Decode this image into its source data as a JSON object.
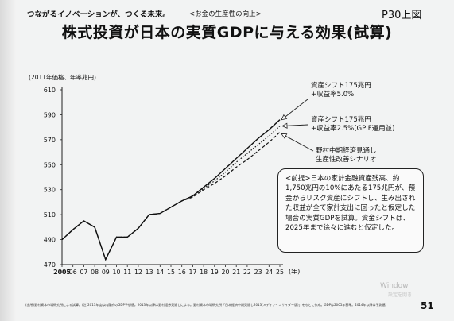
{
  "header": {
    "tagline": "つながるイノベーションが、つくる未来。",
    "subsection": "<お金の生産性の向上>",
    "page_ref": "P30上図"
  },
  "title": "株式投資が日本の実質GDPに与える効果(試算)",
  "units_label": "(2011年価格、年率兆円)",
  "year_unit_label": "(年)",
  "chart_data": {
    "type": "line",
    "x": [
      2005,
      2006,
      2007,
      2008,
      2009,
      2010,
      2011,
      2012,
      2013,
      2014,
      2015,
      2016,
      2017,
      2018,
      2019,
      2020,
      2021,
      2022,
      2023,
      2024,
      2025
    ],
    "x_tick_labels": [
      "2005",
      "06",
      "07",
      "08",
      "09",
      "10",
      "11",
      "12",
      "13",
      "14",
      "15",
      "16",
      "17",
      "18",
      "19",
      "20",
      "21",
      "22",
      "23",
      "24",
      "25"
    ],
    "ylim": [
      470,
      610
    ],
    "y_ticks": [
      470,
      490,
      510,
      530,
      550,
      570,
      590,
      610
    ],
    "grid": false,
    "series": [
      {
        "name": "資産シフト175兆円+収益率5.0%",
        "style": "solid",
        "values": [
          490,
          498,
          505,
          500,
          474,
          492,
          492,
          499,
          510,
          511,
          516,
          521,
          525,
          532,
          539,
          547,
          555,
          563,
          571,
          578,
          586
        ]
      },
      {
        "name": "資産シフト175兆円+収益率2.5%(GPIF運用並)",
        "style": "dotted",
        "values": [
          490,
          498,
          505,
          500,
          474,
          492,
          492,
          499,
          510,
          511,
          516,
          521,
          525,
          531,
          537,
          544,
          552,
          559,
          566,
          573,
          581
        ]
      },
      {
        "name": "野村中期経済見通し生産性改善シナリオ",
        "style": "dashed",
        "values": [
          490,
          498,
          505,
          500,
          474,
          492,
          492,
          499,
          510,
          511,
          516,
          521,
          524,
          530,
          535,
          541,
          548,
          554,
          561,
          568,
          576
        ]
      }
    ]
  },
  "annotations": {
    "s1_line1": "資産シフト175兆円",
    "s1_line2": "+収益率5.0%",
    "s2_line1": "資産シフト175兆円",
    "s2_line2": "+収益率2.5%(GPIF運用並)",
    "s3_line1": "野村中期経済見通し",
    "s3_line2": "生産性改善シナリオ"
  },
  "note": {
    "text": "<前提>日本の家計金融資産残高、約1,750兆円の10%にあたる175兆円が、預金からリスク資産にシフトし、生み出された収益が全て家計支出に回ったと仮定した場合の実質GDPを試算。資金シフトは、2025年まで徐々に進むと仮定した。"
  },
  "footer": {
    "text": "(出所)野村資本市場研究所による試算。(注)2013年度は内閣府のGDP予想値。2013年以降は野村證券見通しによる。野村資本市場研究所「日本経済中期見通し2013(メディアインサイダー版)」をもとに作成。GDPは2005年基準。2014年以降は予測値。"
  },
  "page_number": "51",
  "watermark": {
    "line1": "Window",
    "line2": "設定を開き"
  },
  "colors": {
    "line": "#111111",
    "background": "#f2f3f3"
  }
}
